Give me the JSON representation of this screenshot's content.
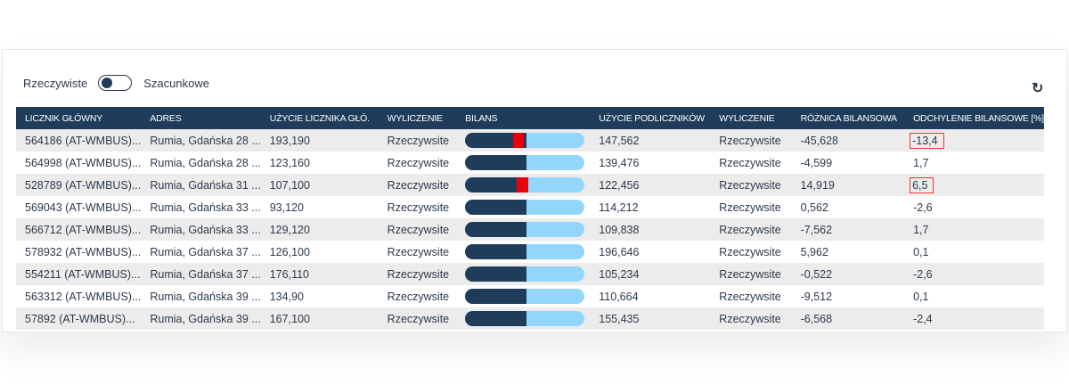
{
  "toggle": {
    "left_label": "Rzeczywiste",
    "right_label": "Szacunkowe",
    "state": "left"
  },
  "refresh_icon": "refresh-icon",
  "colors": {
    "header": "#1f3d5a",
    "bar_main": "#1f3d5a",
    "bar_sub": "#93d6fc",
    "alert": "#e8000b"
  },
  "table": {
    "headers": [
      "LICZNIK GŁÓWNY",
      "ADRES",
      "UŻYCIE LICZNIKA GŁÓ.",
      "WYLICZENIE",
      "BILANS",
      "UŻYCIE PODLICZNIKÓW",
      "WYLICZENIE",
      "RÓŻNICA BILANSOWA",
      "ODCHYLENIE BILANSOWE [%]"
    ],
    "rows": [
      {
        "meter": "564186 (AT-WMBUS)...",
        "address": "Rumia, Gdańska 28 ...",
        "main_usage": "193,190",
        "calc1": "Rzeczywsite",
        "split": 0.51,
        "marker": [
          0.4,
          0.49
        ],
        "sub_usage": "147,562",
        "calc2": "Rzeczywsite",
        "diff": "-45,628",
        "deviation": "-13,4",
        "flagged": true
      },
      {
        "meter": "564998 (AT-WMBUS)...",
        "address": "Rumia, Gdańska 28 ...",
        "main_usage": "123,160",
        "calc1": "Rzeczywsite",
        "split": 0.51,
        "marker": null,
        "sub_usage": "139,476",
        "calc2": "Rzeczywsite",
        "diff": "-4,599",
        "deviation": "1,7",
        "flagged": false
      },
      {
        "meter": "528789 (AT-WMBUS)...",
        "address": "Rumia, Gdańska 31 ...",
        "main_usage": "107,100",
        "calc1": "Rzeczywsite",
        "split": 0.53,
        "marker": [
          0.435,
          0.53
        ],
        "sub_usage": "122,456",
        "calc2": "Rzeczywsite",
        "diff": "14,919",
        "deviation": "6,5",
        "flagged": true
      },
      {
        "meter": "569043 (AT-WMBUS)...",
        "address": "Rumia, Gdańska 33 ...",
        "main_usage": "93,120",
        "calc1": "Rzeczywsite",
        "split": 0.51,
        "marker": null,
        "sub_usage": "114,212",
        "calc2": "Rzeczywsite",
        "diff": "0,562",
        "deviation": "-2,6",
        "flagged": false
      },
      {
        "meter": "566712 (AT-WMBUS)...",
        "address": "Rumia, Gdańska 33 ...",
        "main_usage": "129,120",
        "calc1": "Rzeczywsite",
        "split": 0.51,
        "marker": null,
        "sub_usage": "109,838",
        "calc2": "Rzeczywsite",
        "diff": "-7,562",
        "deviation": "1,7",
        "flagged": false
      },
      {
        "meter": "578932 (AT-WMBUS)...",
        "address": "Rumia, Gdańska 37 ...",
        "main_usage": "126,100",
        "calc1": "Rzeczywsite",
        "split": 0.51,
        "marker": null,
        "sub_usage": "196,646",
        "calc2": "Rzeczywsite",
        "diff": "5,962",
        "deviation": "0,1",
        "flagged": false
      },
      {
        "meter": "554211 (AT-WMBUS)...",
        "address": "Rumia, Gdańska 37 ...",
        "main_usage": "176,110",
        "calc1": "Rzeczywsite",
        "split": 0.51,
        "marker": null,
        "sub_usage": "105,234",
        "calc2": "Rzeczywsite",
        "diff": "-0,522",
        "deviation": "-2,6",
        "flagged": false
      },
      {
        "meter": "563312 (AT-WMBUS)...",
        "address": "Rumia, Gdańska 39 ...",
        "main_usage": "134,90",
        "calc1": "Rzeczywsite",
        "split": 0.51,
        "marker": null,
        "sub_usage": "110,664",
        "calc2": "Rzeczywsite",
        "diff": "-9,512",
        "deviation": "0,1",
        "flagged": false
      },
      {
        "meter": "57892 (AT-WMBUS)...",
        "address": "Rumia, Gdańska 39 ...",
        "main_usage": "167,100",
        "calc1": "Rzeczywsite",
        "split": 0.51,
        "marker": null,
        "sub_usage": "155,435",
        "calc2": "Rzeczywsite",
        "diff": "-6,568",
        "deviation": "-2,4",
        "flagged": false
      }
    ]
  }
}
